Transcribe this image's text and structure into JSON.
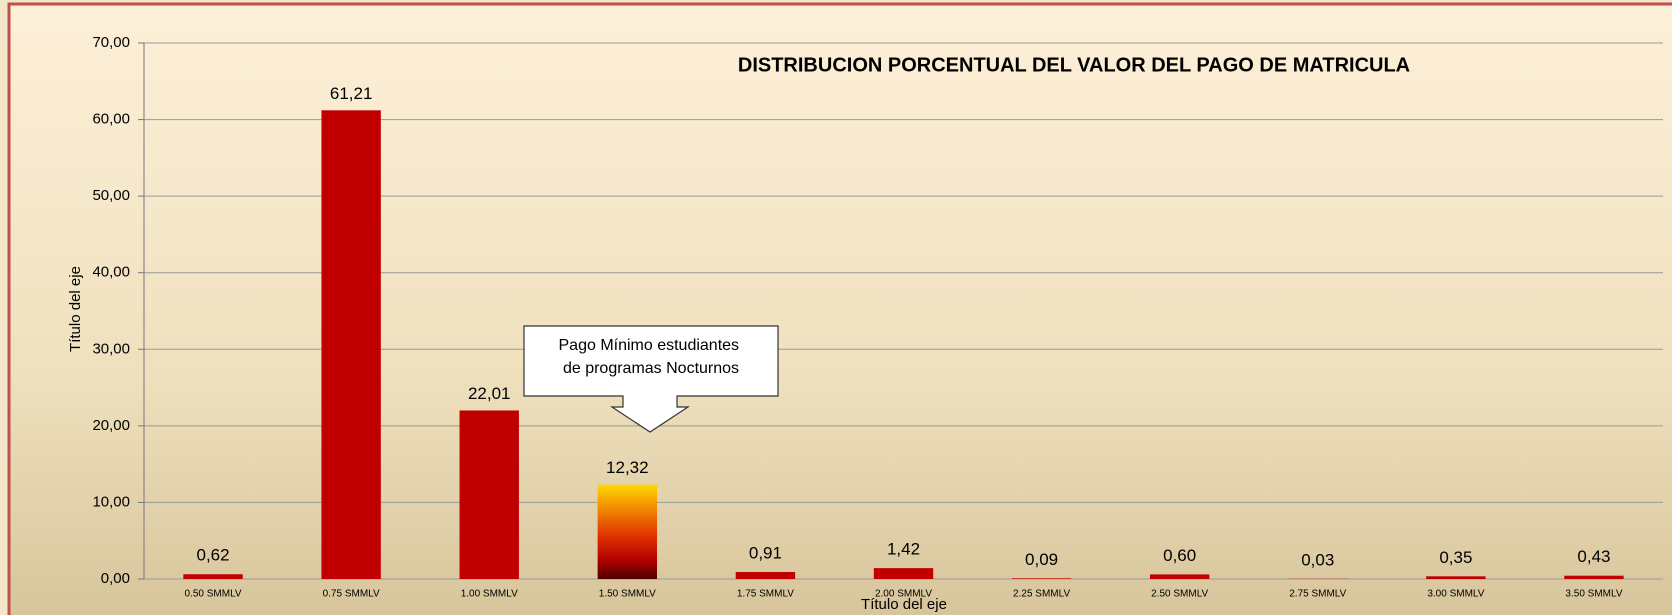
{
  "chart_data": {
    "type": "bar",
    "title": "DISTRIBUCION PORCENTUAL DEL VALOR DEL PAGO DE MATRICULA",
    "x_label": "Título del eje",
    "y_label": "Título del eje",
    "annotation": "Pago Mínimo estudiantes  de programas Nocturnos",
    "categories": [
      "0.50 SMMLV",
      "0.75 SMMLV",
      "1.00 SMMLV",
      "1.50 SMMLV",
      "1.75 SMMLV",
      "2.00 SMMLV",
      "2.25 SMMLV",
      "2.50 SMMLV",
      "2.75 SMMLV",
      "3.00 SMMLV",
      "3.50 SMMLV"
    ],
    "values": [
      0.62,
      61.21,
      22.01,
      12.32,
      0.91,
      1.42,
      0.09,
      0.6,
      0.03,
      0.35,
      0.43
    ],
    "value_labels": [
      "0,62",
      "61,21",
      "22,01",
      "12,32",
      "0,91",
      "1,42",
      "0,09",
      "0,60",
      "0,03",
      "0,35",
      "0,43"
    ],
    "colors": [
      "#c00000",
      "#c00000",
      "#c00000",
      "#ffd700",
      "#c00000",
      "#c00000",
      "#c00000",
      "#c00000",
      "#c00000",
      "#c00000",
      "#c00000"
    ],
    "ylim": [
      0,
      70
    ],
    "yticks": [
      {
        "value": 0,
        "label": "0,00"
      },
      {
        "value": 10,
        "label": "10,00"
      },
      {
        "value": 20,
        "label": "20,00"
      },
      {
        "value": 30,
        "label": "30,00"
      },
      {
        "value": 40,
        "label": "40,00"
      },
      {
        "value": 50,
        "label": "50,00"
      },
      {
        "value": 60,
        "label": "60,00"
      },
      {
        "value": 70,
        "label": "70,00"
      }
    ],
    "grid": true
  }
}
